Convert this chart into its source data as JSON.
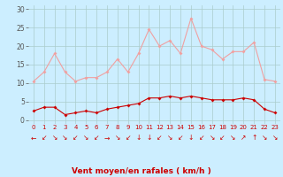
{
  "x": [
    0,
    1,
    2,
    3,
    4,
    5,
    6,
    7,
    8,
    9,
    10,
    11,
    12,
    13,
    14,
    15,
    16,
    17,
    18,
    19,
    20,
    21,
    22,
    23
  ],
  "rafales": [
    10.5,
    13,
    18,
    13,
    10.5,
    11.5,
    11.5,
    13,
    16.5,
    13,
    18,
    24.5,
    20,
    21.5,
    18,
    27.5,
    20,
    19,
    16.5,
    18.5,
    18.5,
    21,
    11,
    10.5
  ],
  "moyen": [
    2.5,
    3.5,
    3.5,
    1.5,
    2,
    2.5,
    2,
    3,
    3.5,
    4,
    4.5,
    6,
    6,
    6.5,
    6,
    6.5,
    6,
    5.5,
    5.5,
    5.5,
    6,
    5.5,
    3,
    2
  ],
  "bg_color": "#cceeff",
  "line_color_rafales": "#f0a0a0",
  "line_color_moyen": "#cc0000",
  "grid_color": "#aacccc",
  "xlabel": "Vent moyen/en rafales ( km/h )",
  "xlabel_color": "#cc0000",
  "yticks": [
    0,
    5,
    10,
    15,
    20,
    25,
    30
  ],
  "xticks": [
    0,
    1,
    2,
    3,
    4,
    5,
    6,
    7,
    8,
    9,
    10,
    11,
    12,
    13,
    14,
    15,
    16,
    17,
    18,
    19,
    20,
    21,
    22,
    23
  ],
  "ylim": [
    -1,
    31
  ],
  "xlim": [
    -0.5,
    23.5
  ],
  "arrows": [
    "←",
    "↙",
    "↘",
    "↘",
    "↙",
    "↘",
    "↙",
    "→",
    "↘",
    "↙",
    "↓",
    "↓",
    "↙",
    "↘",
    "↙",
    "↓",
    "↙",
    "↘",
    "↙",
    "↘",
    "↗",
    "↑",
    "↘",
    "↘"
  ]
}
